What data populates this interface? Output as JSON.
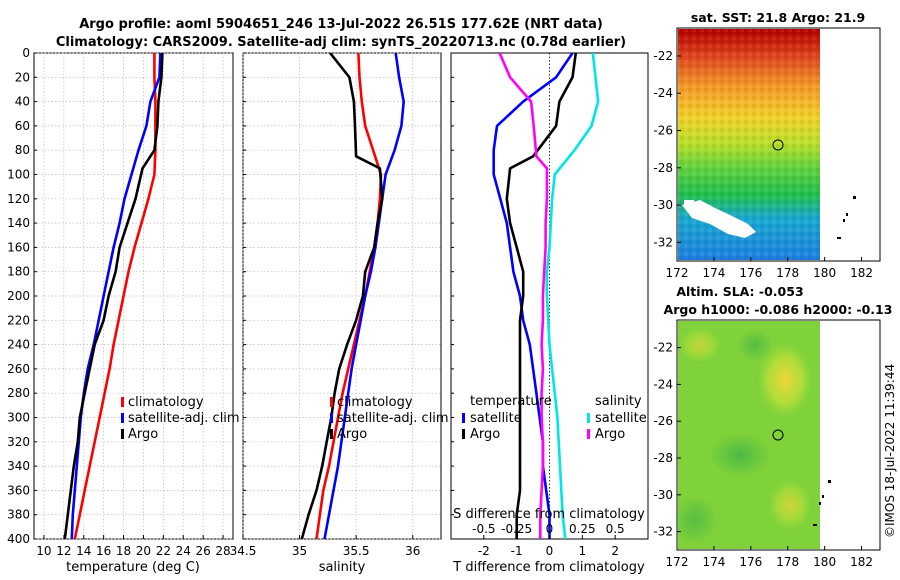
{
  "title": {
    "line1": "Argo profile: aoml 5904651_246 13-Jul-2022 26.51S 177.62E (NRT data)",
    "line2": "Climatology: CARS2009. Satellite-adj clim: synTS_20220713.nc (0.78d earlier)"
  },
  "watermark": "©IMOS 18-Jul-2022 11:39:44",
  "depth_ticks": [
    "0",
    "20",
    "40",
    "60",
    "80",
    "100",
    "120",
    "140",
    "160",
    "180",
    "200",
    "220",
    "240",
    "260",
    "280",
    "300",
    "320",
    "340",
    "360",
    "380",
    "400"
  ],
  "colors": {
    "clim": "#ff0000",
    "sat": "#0000ff",
    "argo": "#000000",
    "sal_sat": "#00e5e5",
    "sal_argo": "#ff00ff"
  },
  "chart_data": [
    {
      "type": "line",
      "id": "temperature",
      "xlabel": "temperature (deg C)",
      "xlim": [
        9,
        29
      ],
      "xticks": [
        "10",
        "12",
        "14",
        "16",
        "18",
        "20",
        "22",
        "24",
        "26",
        "28"
      ],
      "ylim": [
        0,
        400
      ],
      "legend": {
        "position": "lower-right",
        "entries": [
          "climatology",
          "satellite-adj. clim",
          "Argo"
        ]
      },
      "series": [
        {
          "name": "climatology",
          "color": "#ff0000",
          "x": [
            21.1,
            21.1,
            21.2,
            21.2,
            21.2,
            21.1,
            20.5,
            19.8,
            19.1,
            18.5,
            18.0,
            17.5,
            17.0,
            16.6,
            16.1,
            15.6,
            15.1,
            14.6,
            14.1,
            13.6,
            13.1
          ],
          "y": [
            0,
            20,
            40,
            60,
            80,
            100,
            120,
            140,
            160,
            180,
            200,
            220,
            240,
            260,
            280,
            300,
            320,
            340,
            360,
            380,
            400
          ]
        },
        {
          "name": "satellite-adj. clim",
          "color": "#0000ff",
          "x": [
            21.7,
            21.6,
            20.7,
            20.3,
            19.5,
            18.8,
            18.1,
            17.6,
            17.0,
            16.5,
            16.0,
            15.5,
            15.0,
            14.4,
            14.0,
            13.7,
            13.5,
            13.3,
            13.1,
            12.9,
            12.8
          ],
          "y": [
            0,
            20,
            40,
            60,
            80,
            100,
            120,
            140,
            160,
            180,
            200,
            220,
            240,
            260,
            280,
            300,
            320,
            340,
            360,
            380,
            400
          ]
        },
        {
          "name": "Argo",
          "color": "#000000",
          "x": [
            21.9,
            21.8,
            21.5,
            21.4,
            21.1,
            19.9,
            19.2,
            18.4,
            17.6,
            17.2,
            16.5,
            16.0,
            15.1,
            14.6,
            14.1,
            13.6,
            13.4,
            13.0,
            12.7,
            12.4,
            12.1
          ],
          "y": [
            0,
            20,
            40,
            60,
            80,
            95,
            120,
            140,
            160,
            180,
            200,
            220,
            240,
            260,
            280,
            300,
            320,
            340,
            360,
            380,
            400
          ]
        }
      ]
    },
    {
      "type": "line",
      "id": "salinity",
      "xlabel": "salinity",
      "xlim": [
        34.5,
        36.25
      ],
      "xticks": [
        "34.5",
        "35",
        "35.5",
        "36"
      ],
      "ylim": [
        0,
        400
      ],
      "legend": {
        "position": "lower-right",
        "entries": [
          "climatology",
          "satellite-adj. clim",
          "Argo"
        ]
      },
      "series": [
        {
          "name": "climatology",
          "color": "#ff0000",
          "x": [
            35.52,
            35.53,
            35.55,
            35.58,
            35.65,
            35.72,
            35.71,
            35.69,
            35.66,
            35.62,
            35.58,
            35.53,
            35.48,
            35.43,
            35.38,
            35.34,
            35.3,
            35.26,
            35.21,
            35.18,
            35.15
          ],
          "y": [
            0,
            20,
            40,
            60,
            80,
            100,
            120,
            140,
            160,
            180,
            200,
            220,
            240,
            260,
            280,
            300,
            320,
            340,
            360,
            380,
            400
          ]
        },
        {
          "name": "satellite-adj. clim",
          "color": "#0000ff",
          "x": [
            35.85,
            35.88,
            35.92,
            35.9,
            35.84,
            35.76,
            35.73,
            35.7,
            35.67,
            35.63,
            35.58,
            35.54,
            35.5,
            35.46,
            35.43,
            35.4,
            35.37,
            35.34,
            35.3,
            35.26,
            35.22
          ],
          "y": [
            0,
            20,
            40,
            60,
            80,
            100,
            120,
            140,
            160,
            180,
            200,
            220,
            240,
            260,
            280,
            300,
            320,
            340,
            360,
            380,
            400
          ]
        },
        {
          "name": "Argo",
          "color": "#000000",
          "x": [
            35.27,
            35.44,
            35.48,
            35.49,
            35.5,
            35.71,
            35.73,
            35.69,
            35.66,
            35.58,
            35.56,
            35.5,
            35.42,
            35.35,
            35.31,
            35.28,
            35.24,
            35.2,
            35.15,
            35.08,
            35.02
          ],
          "y": [
            0,
            20,
            40,
            60,
            85,
            95,
            120,
            140,
            160,
            180,
            200,
            220,
            240,
            260,
            280,
            300,
            320,
            340,
            360,
            380,
            400
          ]
        }
      ]
    },
    {
      "type": "line",
      "id": "differences",
      "xlabel": "T difference from climatology",
      "xlabel_top": "S difference from climatology",
      "xlim": [
        -3,
        3
      ],
      "xticks": [
        "-2",
        "-1",
        "0",
        "1",
        "2"
      ],
      "xticks_top": [
        "-0.5",
        "-0.25",
        "0",
        "0.25",
        "0.5"
      ],
      "ylim": [
        0,
        400
      ],
      "legend": {
        "position": "lower",
        "temperature_label": "temperature",
        "salinity_label": "salinity",
        "entries": [
          "satellite",
          "Argo",
          "satellite",
          "Argo"
        ]
      },
      "series": [
        {
          "name": "temperature satellite",
          "color": "#0000ff",
          "x": [
            0.7,
            0.2,
            -0.8,
            -1.6,
            -1.7,
            -1.7,
            -1.5,
            -1.3,
            -1.2,
            -1.1,
            -0.9,
            -0.8,
            -0.6,
            -0.5,
            -0.4,
            -0.3,
            -0.2,
            -0.2,
            -0.1,
            0.0,
            0.0
          ],
          "y": [
            0,
            20,
            40,
            60,
            80,
            100,
            120,
            140,
            160,
            180,
            200,
            220,
            240,
            260,
            280,
            300,
            320,
            340,
            360,
            380,
            400
          ]
        },
        {
          "name": "temperature Argo",
          "color": "#000000",
          "x": [
            0.8,
            0.7,
            0.3,
            0.2,
            -0.5,
            -1.2,
            -1.3,
            -1.2,
            -1.0,
            -0.8,
            -0.8,
            -0.9,
            -0.9,
            -0.9,
            -0.9,
            -0.9,
            -0.9,
            -0.9,
            -0.9,
            -1.0,
            -1.0
          ],
          "y": [
            0,
            20,
            40,
            60,
            85,
            95,
            120,
            140,
            160,
            180,
            200,
            220,
            240,
            260,
            280,
            300,
            320,
            340,
            360,
            380,
            400
          ]
        },
        {
          "name": "salinity satellite",
          "color": "#00e5e5",
          "x": [
            0.33,
            0.35,
            0.37,
            0.32,
            0.19,
            0.04,
            0.02,
            0.01,
            0.0,
            -0.02,
            -0.02,
            -0.01,
            0.0,
            0.02,
            0.04,
            0.06,
            0.07,
            0.08,
            0.09,
            0.1,
            0.12
          ],
          "y": [
            0,
            20,
            40,
            60,
            80,
            100,
            120,
            140,
            160,
            180,
            200,
            220,
            240,
            260,
            280,
            300,
            320,
            340,
            360,
            380,
            400
          ]
        },
        {
          "name": "salinity Argo",
          "color": "#ff00ff",
          "x": [
            -0.38,
            -0.3,
            -0.14,
            -0.12,
            -0.1,
            -0.02,
            -0.02,
            -0.03,
            -0.03,
            -0.04,
            -0.05,
            -0.05,
            -0.06,
            -0.05,
            -0.06,
            -0.06,
            -0.05,
            -0.05,
            -0.06,
            -0.07,
            -0.07
          ],
          "y": [
            0,
            20,
            40,
            60,
            85,
            95,
            120,
            140,
            160,
            180,
            200,
            220,
            240,
            260,
            280,
            300,
            320,
            340,
            360,
            380,
            400
          ]
        }
      ]
    },
    {
      "type": "heatmap",
      "id": "sst_map",
      "title": "sat. SST: 21.8 Argo: 21.9",
      "xlim": [
        172,
        183
      ],
      "ylim": [
        -33,
        -20.5
      ],
      "xticks": [
        "172",
        "174",
        "176",
        "178",
        "180",
        "182"
      ],
      "yticks": [
        "-22",
        "-24",
        "-26",
        "-28",
        "-30",
        "-32"
      ],
      "argo_marker": {
        "lon": 177.6,
        "lat": -26.5
      }
    },
    {
      "type": "heatmap",
      "id": "sla_map",
      "title": "Altim. SLA: -0.053",
      "subtitle": "Argo h1000: -0.086 h2000: -0.13",
      "xlim": [
        172,
        183
      ],
      "ylim": [
        -33,
        -20.5
      ],
      "xticks": [
        "172",
        "174",
        "176",
        "178",
        "180",
        "182"
      ],
      "yticks": [
        "-22",
        "-24",
        "-26",
        "-28",
        "-30",
        "-32"
      ],
      "argo_marker": {
        "lon": 177.6,
        "lat": -26.5
      }
    }
  ]
}
